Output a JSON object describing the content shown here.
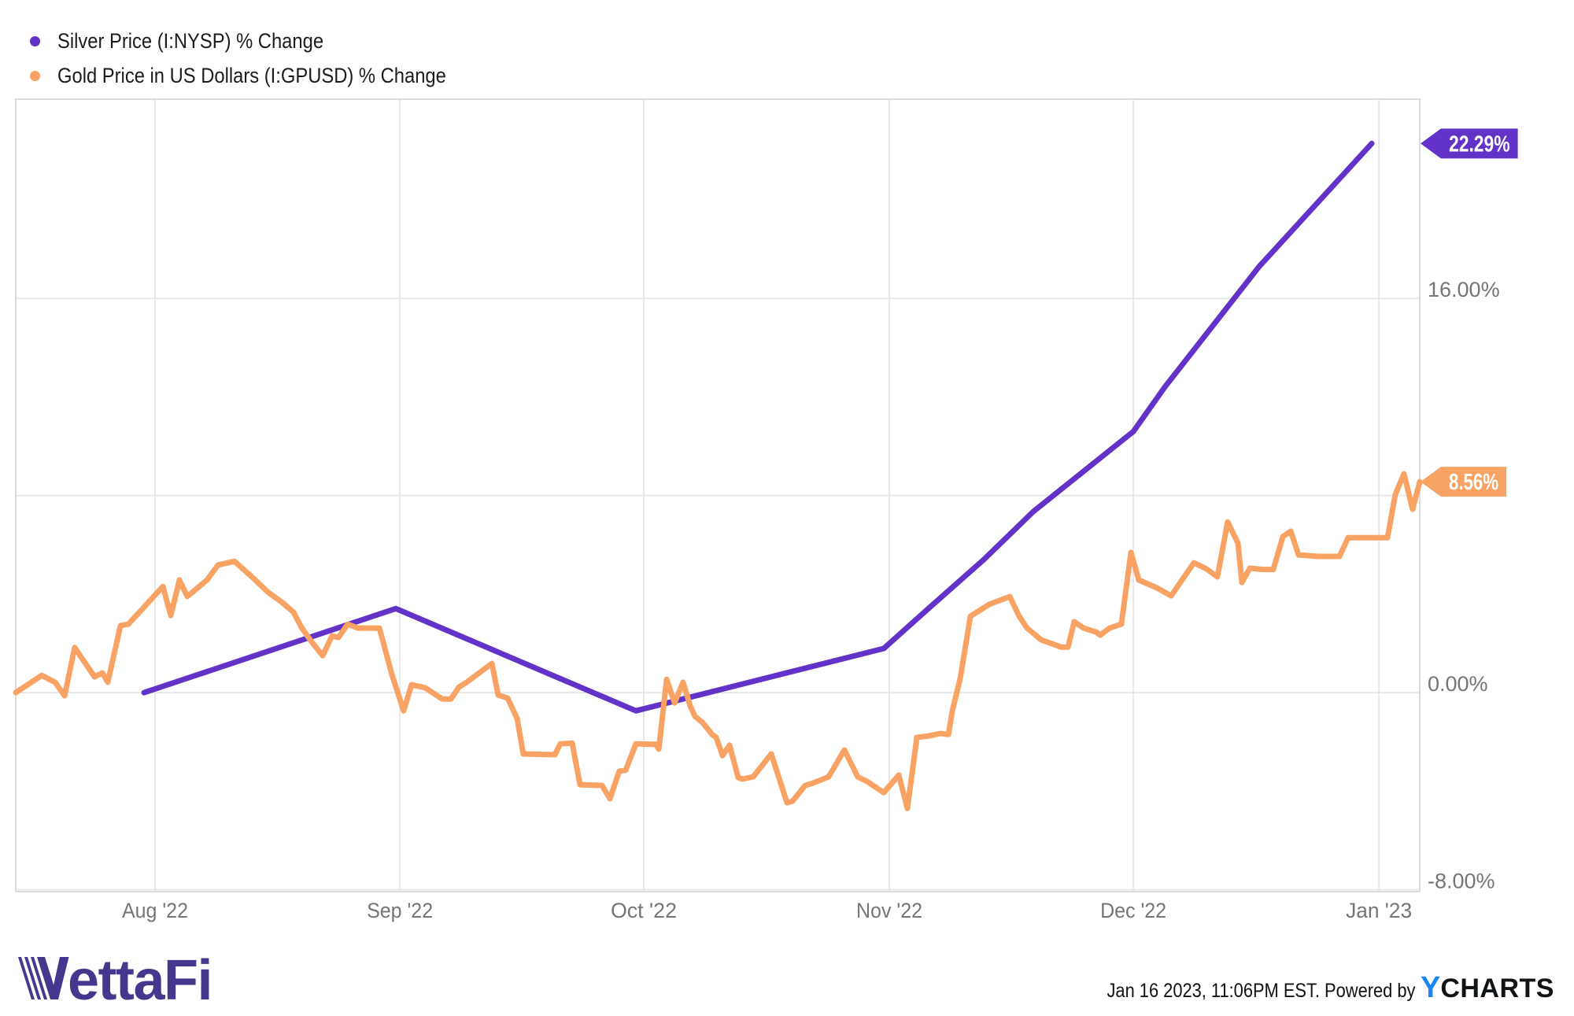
{
  "legend": [
    {
      "label": "Silver Price (I:NYSP) % Change",
      "color": "#6332C8"
    },
    {
      "label": "Gold Price in US Dollars (I:GPUSD) % Change",
      "color": "#F8A263"
    }
  ],
  "branding": {
    "logo_text": "VettaFi",
    "logo_color": "#43388E"
  },
  "footer": {
    "timestamp": "Jan 16 2023, 11:06PM EST.",
    "powered_by": "Powered by",
    "ycharts_y": "Y",
    "ycharts_rest": "CHARTS",
    "ycharts_y_color": "#1B85F3"
  },
  "chart_data": {
    "type": "line",
    "title": "",
    "xlabel": "",
    "ylabel": "",
    "grid": true,
    "legend_position": "top-left",
    "ylim": [
      -8.08,
      24.09
    ],
    "x_ticks": [
      {
        "label": "Aug '22",
        "f": 0.0992
      },
      {
        "label": "Sep '22",
        "f": 0.2736
      },
      {
        "label": "Oct '22",
        "f": 0.4473
      },
      {
        "label": "Nov '22",
        "f": 0.6222
      },
      {
        "label": "Dec '22",
        "f": 0.796
      },
      {
        "label": "Jan '23",
        "f": 0.9709
      }
    ],
    "y_ticks": [
      {
        "label": "16.00%",
        "value": 16
      },
      {
        "label": "0.00%",
        "value": 0
      },
      {
        "label": "-8.00%",
        "value": -8
      }
    ],
    "y_gridlines": [
      16,
      8,
      0,
      -8
    ],
    "end_labels": [
      {
        "label": "22.29%",
        "value": 22.29,
        "color": "#6332C8"
      },
      {
        "label": "8.56%",
        "value": 8.56,
        "color": "#F8A263"
      }
    ],
    "series": [
      {
        "name": "Silver Price (I:NYSP) % Change",
        "color": "#6332C8",
        "points": [
          [
            0.0914,
            0.0
          ],
          [
            0.2707,
            3.41
          ],
          [
            0.4417,
            -0.74
          ],
          [
            0.6183,
            1.79
          ],
          [
            0.6502,
            3.42
          ],
          [
            0.6895,
            5.4
          ],
          [
            0.7248,
            7.35
          ],
          [
            0.796,
            10.6
          ],
          [
            0.8184,
            12.4
          ],
          [
            0.8857,
            17.3
          ],
          [
            0.9658,
            22.29
          ]
        ]
      },
      {
        "name": "Gold Price in US Dollars (I:GPUSD) % Change",
        "color": "#F8A263",
        "points": [
          [
            0.0,
            0.0
          ],
          [
            0.0185,
            0.7
          ],
          [
            0.028,
            0.42
          ],
          [
            0.0348,
            -0.13
          ],
          [
            0.042,
            1.83
          ],
          [
            0.0561,
            0.64
          ],
          [
            0.0617,
            0.8
          ],
          [
            0.0656,
            0.42
          ],
          [
            0.0746,
            2.72
          ],
          [
            0.0802,
            2.78
          ],
          [
            0.088,
            3.26
          ],
          [
            0.1048,
            4.31
          ],
          [
            0.1104,
            3.13
          ],
          [
            0.1166,
            4.57
          ],
          [
            0.1222,
            3.9
          ],
          [
            0.1362,
            4.57
          ],
          [
            0.1441,
            5.18
          ],
          [
            0.1558,
            5.33
          ],
          [
            0.1682,
            4.7
          ],
          [
            0.1794,
            4.09
          ],
          [
            0.1895,
            3.67
          ],
          [
            0.1979,
            3.26
          ],
          [
            0.2035,
            2.65
          ],
          [
            0.2102,
            2.1
          ],
          [
            0.2186,
            1.5
          ],
          [
            0.2253,
            2.3
          ],
          [
            0.2298,
            2.24
          ],
          [
            0.2365,
            2.78
          ],
          [
            0.2438,
            2.62
          ],
          [
            0.259,
            2.62
          ],
          [
            0.2679,
            0.74
          ],
          [
            0.2763,
            -0.74
          ],
          [
            0.2819,
            0.32
          ],
          [
            0.2915,
            0.2
          ],
          [
            0.3038,
            -0.26
          ],
          [
            0.31,
            -0.26
          ],
          [
            0.3156,
            0.22
          ],
          [
            0.3212,
            0.42
          ],
          [
            0.3391,
            1.18
          ],
          [
            0.3436,
            -0.1
          ],
          [
            0.3503,
            -0.22
          ],
          [
            0.3571,
            -1.05
          ],
          [
            0.3615,
            -2.49
          ],
          [
            0.384,
            -2.52
          ],
          [
            0.3879,
            -2.08
          ],
          [
            0.3963,
            -2.05
          ],
          [
            0.4019,
            -3.74
          ],
          [
            0.4176,
            -3.77
          ],
          [
            0.4232,
            -4.31
          ],
          [
            0.4299,
            -3.19
          ],
          [
            0.4344,
            -3.15
          ],
          [
            0.4417,
            -2.08
          ],
          [
            0.4557,
            -2.1
          ],
          [
            0.458,
            -2.29
          ],
          [
            0.4636,
            0.54
          ],
          [
            0.4692,
            -0.42
          ],
          [
            0.4753,
            0.42
          ],
          [
            0.4804,
            -0.54
          ],
          [
            0.4837,
            -0.96
          ],
          [
            0.4893,
            -1.22
          ],
          [
            0.496,
            -1.7
          ],
          [
            0.4989,
            -1.82
          ],
          [
            0.5034,
            -2.56
          ],
          [
            0.5084,
            -2.13
          ],
          [
            0.5146,
            -3.45
          ],
          [
            0.5174,
            -3.51
          ],
          [
            0.5252,
            -3.42
          ],
          [
            0.5381,
            -2.49
          ],
          [
            0.5493,
            -4.47
          ],
          [
            0.5532,
            -4.41
          ],
          [
            0.5622,
            -3.77
          ],
          [
            0.5678,
            -3.67
          ],
          [
            0.579,
            -3.42
          ],
          [
            0.5902,
            -2.33
          ],
          [
            0.5997,
            -3.42
          ],
          [
            0.6065,
            -3.61
          ],
          [
            0.6183,
            -4.06
          ],
          [
            0.6289,
            -3.35
          ],
          [
            0.6351,
            -4.7
          ],
          [
            0.6418,
            -1.82
          ],
          [
            0.6502,
            -1.76
          ],
          [
            0.6587,
            -1.66
          ],
          [
            0.6643,
            -1.7
          ],
          [
            0.6671,
            -0.74
          ],
          [
            0.6727,
            0.58
          ],
          [
            0.68,
            3.1
          ],
          [
            0.6934,
            3.58
          ],
          [
            0.708,
            3.9
          ],
          [
            0.7147,
            3.1
          ],
          [
            0.7203,
            2.62
          ],
          [
            0.7304,
            2.14
          ],
          [
            0.7383,
            1.98
          ],
          [
            0.7444,
            1.85
          ],
          [
            0.7495,
            1.85
          ],
          [
            0.7539,
            2.88
          ],
          [
            0.7606,
            2.62
          ],
          [
            0.7696,
            2.46
          ],
          [
            0.7724,
            2.33
          ],
          [
            0.7791,
            2.62
          ],
          [
            0.7875,
            2.78
          ],
          [
            0.7943,
            5.69
          ],
          [
            0.7999,
            4.57
          ],
          [
            0.8128,
            4.25
          ],
          [
            0.8229,
            3.93
          ],
          [
            0.8391,
            5.27
          ],
          [
            0.8481,
            5.02
          ],
          [
            0.8559,
            4.7
          ],
          [
            0.8632,
            6.93
          ],
          [
            0.8705,
            6.07
          ],
          [
            0.8733,
            4.47
          ],
          [
            0.8789,
            5.05
          ],
          [
            0.8884,
            5.0
          ],
          [
            0.8957,
            5.0
          ],
          [
            0.9025,
            6.33
          ],
          [
            0.9081,
            6.55
          ],
          [
            0.9137,
            5.59
          ],
          [
            0.9277,
            5.53
          ],
          [
            0.9428,
            5.53
          ],
          [
            0.949,
            6.29
          ],
          [
            0.9641,
            6.29
          ],
          [
            0.977,
            6.29
          ],
          [
            0.9826,
            8.05
          ],
          [
            0.9888,
            8.88
          ],
          [
            0.9949,
            7.44
          ],
          [
            1.0,
            8.56
          ]
        ]
      }
    ]
  }
}
